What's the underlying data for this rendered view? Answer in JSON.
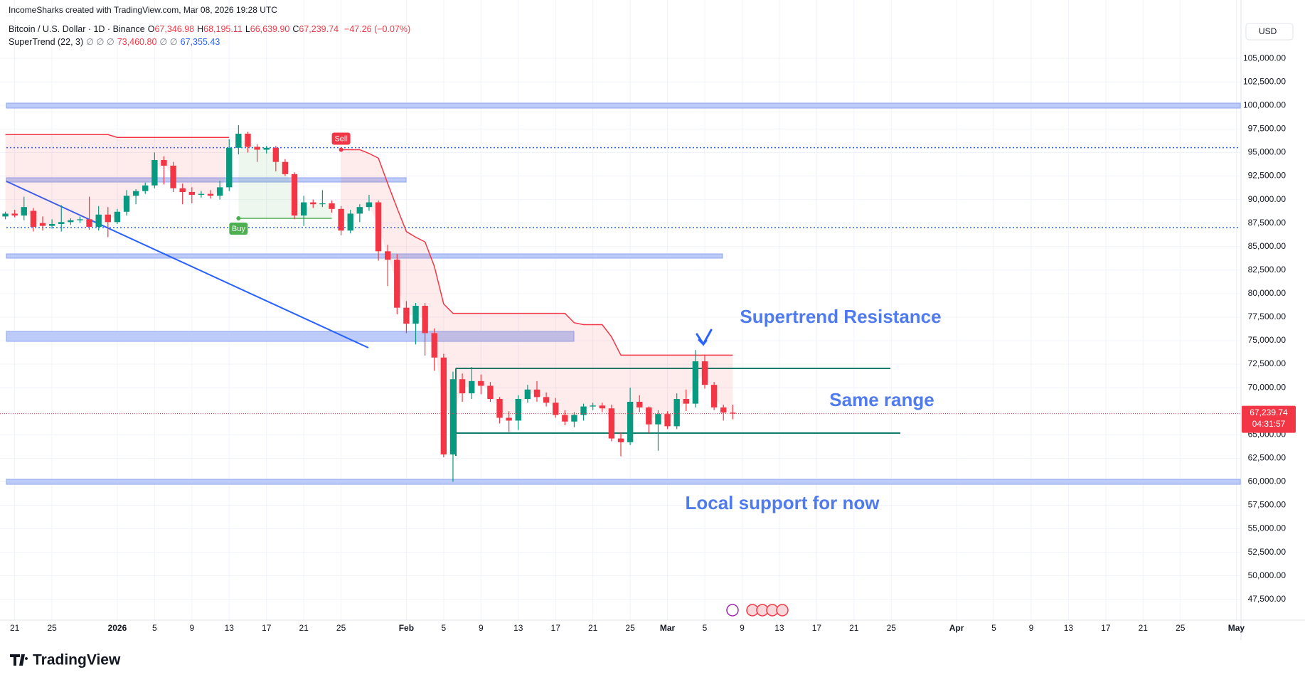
{
  "header": {
    "attribution": "IncomeSharks created with TradingView.com, Mar 08, 2026 19:28 UTC",
    "symbol": "Bitcoin / U.S. Dollar · 1D · Binance",
    "ohlc": [
      {
        "key": "O",
        "value": "67,346.98"
      },
      {
        "key": "H",
        "value": "68,195.11"
      },
      {
        "key": "L",
        "value": "66,639.90"
      },
      {
        "key": "C",
        "value": "67,239.74"
      }
    ],
    "change": "−47.26 (−0.07%)",
    "indicator": "SuperTrend (22, 3)",
    "indicator_values": [
      "∅ ∅ ∅",
      "73,460.80",
      "∅ ∅",
      "67,355.43"
    ],
    "currency": "USD"
  },
  "logo": "TradingView",
  "chart_data": {
    "type": "candlestick",
    "categories": [
      null,
      "21",
      null,
      null,
      null,
      "25",
      null,
      null,
      null,
      null,
      null,
      null,
      "2026",
      null,
      null,
      null,
      "5",
      null,
      null,
      null,
      "9",
      null,
      null,
      null,
      "13",
      null,
      null,
      null,
      "17",
      null,
      null,
      null,
      "21",
      null,
      null,
      null,
      "25",
      null,
      null,
      null,
      null,
      null,
      null,
      "Feb",
      null,
      null,
      null,
      "5",
      null,
      null,
      null,
      "9",
      null,
      null,
      null,
      "13",
      null,
      null,
      null,
      "17",
      null,
      null,
      null,
      "21",
      null,
      null,
      null,
      "25",
      null,
      null,
      null,
      "Mar",
      null,
      null,
      null,
      "5",
      null,
      null,
      null,
      "9",
      null,
      null,
      null,
      "13",
      null,
      null,
      null,
      "17",
      null,
      null,
      null,
      "21",
      null,
      null,
      null,
      "25",
      null,
      null,
      null,
      null,
      null,
      null,
      "Apr",
      null,
      null,
      null,
      "5",
      null,
      null,
      null,
      "9",
      null,
      null,
      null,
      "13",
      null,
      null,
      null,
      "17",
      null,
      null,
      null,
      "21",
      null,
      null,
      null,
      "25",
      null,
      null,
      null,
      null,
      null,
      "May"
    ],
    "open": [
      88200,
      88500,
      88300,
      88800,
      87500,
      87200,
      87400,
      87600,
      87800,
      87900,
      87100,
      88400,
      87600,
      88700,
      90400,
      90900,
      91500,
      94200,
      93600,
      91200,
      90800,
      90500,
      90600,
      90400,
      91300,
      95500,
      97000,
      95600,
      95300,
      95500,
      94000,
      92700,
      88300,
      89700,
      89500,
      89600,
      89000,
      86700,
      88500,
      89200,
      89700,
      84500,
      83600,
      78500,
      76800,
      78700,
      75800,
      73200,
      62900,
      70900,
      69400,
      70700,
      70200,
      68800,
      66800,
      66500,
      68800,
      69800,
      69000,
      68400,
      67100,
      66400,
      67100,
      68000,
      68100,
      67800,
      64600,
      64200,
      68500,
      67900,
      66100,
      67200,
      65900,
      68800,
      68300,
      72800,
      70300,
      67900,
      67346.98,
      null,
      null,
      null,
      null,
      null,
      null,
      null,
      null,
      null,
      null,
      null,
      null,
      null,
      null,
      null,
      null,
      null,
      null,
      null,
      null,
      null,
      null,
      null,
      null,
      null,
      null,
      null,
      null,
      null,
      null,
      null,
      null,
      null,
      null,
      null,
      null,
      null,
      null,
      null,
      null,
      null,
      null,
      null,
      null,
      null,
      null,
      null,
      null,
      null,
      null,
      null,
      null,
      null,
      null
    ],
    "high": [
      88700,
      88900,
      90300,
      89100,
      88200,
      87900,
      89400,
      88000,
      88200,
      90300,
      89300,
      89200,
      89000,
      91000,
      91100,
      91800,
      95000,
      94600,
      94000,
      91700,
      91300,
      90900,
      91000,
      92000,
      96400,
      97900,
      97200,
      95900,
      95700,
      95700,
      94300,
      92900,
      90400,
      90000,
      91000,
      89900,
      89300,
      88900,
      89500,
      90500,
      89900,
      85200,
      84200,
      79200,
      79000,
      79000,
      76300,
      73600,
      71700,
      71500,
      72200,
      71400,
      70600,
      69000,
      67500,
      69200,
      70300,
      70700,
      69500,
      68900,
      67600,
      67400,
      68300,
      68400,
      68400,
      68200,
      65200,
      70000,
      69200,
      68000,
      67600,
      67500,
      69400,
      69800,
      74000,
      73500,
      70600,
      68200,
      68195.11,
      null,
      null,
      null,
      null,
      null,
      null,
      null,
      null,
      null,
      null,
      null,
      null,
      null,
      null,
      null,
      null,
      null,
      null,
      null,
      null,
      null,
      null,
      null,
      null,
      null,
      null,
      null,
      null,
      null,
      null,
      null,
      null,
      null,
      null,
      null,
      null,
      null,
      null,
      null,
      null,
      null,
      null,
      null,
      null,
      null,
      null,
      null,
      null,
      null,
      null,
      null,
      null,
      null,
      null
    ],
    "low": [
      87900,
      88100,
      87800,
      86600,
      86700,
      86900,
      86600,
      87300,
      87500,
      86800,
      86700,
      86000,
      87400,
      88300,
      89500,
      90600,
      91200,
      91600,
      90800,
      89500,
      89600,
      90200,
      90100,
      90000,
      90900,
      94800,
      95000,
      94000,
      94900,
      93000,
      92500,
      87900,
      87200,
      89100,
      89200,
      88600,
      86200,
      86400,
      87600,
      88800,
      83500,
      80800,
      77800,
      75800,
      74600,
      73400,
      71800,
      62600,
      60000,
      68500,
      68800,
      69300,
      68500,
      66200,
      65300,
      65500,
      68400,
      68500,
      68000,
      66800,
      66000,
      65800,
      66500,
      67600,
      67400,
      64300,
      62700,
      63900,
      67400,
      65200,
      63300,
      65600,
      65600,
      67500,
      67900,
      69900,
      67600,
      66500,
      66639.9,
      null,
      null,
      null,
      null,
      null,
      null,
      null,
      null,
      null,
      null,
      null,
      null,
      null,
      null,
      null,
      null,
      null,
      null,
      null,
      null,
      null,
      null,
      null,
      null,
      null,
      null,
      null,
      null,
      null,
      null,
      null,
      null,
      null,
      null,
      null,
      null,
      null,
      null,
      null,
      null,
      null,
      null,
      null,
      null,
      null,
      null,
      null,
      null,
      null,
      null,
      null,
      null,
      null,
      null
    ],
    "close": [
      88500,
      88300,
      89200,
      87100,
      87200,
      87400,
      87600,
      87800,
      87900,
      87100,
      88400,
      87600,
      88700,
      90400,
      90900,
      91500,
      94200,
      93600,
      91200,
      90800,
      90500,
      90600,
      90400,
      91300,
      95500,
      97000,
      95600,
      95300,
      95500,
      94000,
      92700,
      88300,
      89700,
      89500,
      89600,
      89000,
      86700,
      88500,
      89200,
      89700,
      84500,
      83600,
      78500,
      76800,
      78700,
      75800,
      73200,
      62900,
      70900,
      69400,
      70700,
      70200,
      68800,
      66800,
      66500,
      68800,
      69800,
      69000,
      68400,
      67100,
      66400,
      67100,
      68000,
      68100,
      67800,
      64600,
      64200,
      68500,
      67900,
      66100,
      67200,
      65900,
      68800,
      68300,
      72800,
      70300,
      67900,
      67350,
      67239.74,
      null,
      null,
      null,
      null,
      null,
      null,
      null,
      null,
      null,
      null,
      null,
      null,
      null,
      null,
      null,
      null,
      null,
      null,
      null,
      null,
      null,
      null,
      null,
      null,
      null,
      null,
      null,
      null,
      null,
      null,
      null,
      null,
      null,
      null,
      null,
      null,
      null,
      null,
      null,
      null,
      null,
      null,
      null,
      null,
      null,
      null,
      null,
      null,
      null,
      null,
      null,
      null,
      null,
      null
    ],
    "supertrend_down": [
      96900,
      96900,
      96900,
      96900,
      96900,
      96900,
      96900,
      96900,
      96900,
      96900,
      96900,
      96900,
      96600,
      96600,
      96600,
      96600,
      96600,
      96600,
      96600,
      96600,
      96600,
      96600,
      96600,
      96600,
      96600,
      null,
      null,
      null,
      null,
      null,
      null,
      null,
      null,
      null,
      null,
      null,
      95300,
      95300,
      95300,
      94900,
      94400,
      91700,
      89100,
      86600,
      86000,
      85500,
      82900,
      78900,
      77900,
      77900,
      77900,
      77900,
      77900,
      77900,
      77900,
      77900,
      77900,
      77900,
      77900,
      77900,
      77900,
      76900,
      76700,
      76700,
      76700,
      75400,
      73460.8,
      73460.8,
      73460.8,
      73460.8,
      73460.8,
      73460.8,
      73460.8,
      73460.8,
      73460.8,
      73460.8,
      73460.8,
      73460.8,
      73460.8,
      null,
      null,
      null,
      null,
      null,
      null,
      null,
      null,
      null,
      null,
      null,
      null,
      null,
      null,
      null,
      null,
      null,
      null,
      null,
      null,
      null,
      null,
      null,
      null,
      null,
      null,
      null,
      null,
      null,
      null,
      null,
      null,
      null,
      null,
      null,
      null,
      null,
      null,
      null,
      null,
      null,
      null,
      null,
      null,
      null,
      null,
      null,
      null,
      null,
      null,
      null,
      null,
      null,
      null
    ],
    "supertrend_up": [
      null,
      null,
      null,
      null,
      null,
      null,
      null,
      null,
      null,
      null,
      null,
      null,
      null,
      null,
      null,
      null,
      null,
      null,
      null,
      null,
      null,
      null,
      null,
      null,
      null,
      88000,
      88000,
      88000,
      88000,
      88000,
      88000,
      88000,
      88000,
      88000,
      88000,
      88000,
      null,
      null,
      null,
      null,
      null,
      null,
      null,
      null,
      null,
      null,
      null,
      null,
      null,
      null,
      null,
      null,
      null,
      null,
      null,
      null,
      null,
      null,
      null,
      null,
      null,
      null,
      null,
      null,
      null,
      null,
      null,
      null,
      null,
      null,
      null,
      null,
      null,
      null,
      null,
      null,
      null,
      null,
      null,
      null,
      null,
      null,
      null,
      null,
      null,
      null,
      null,
      null,
      null,
      null,
      null,
      null,
      null,
      null,
      null,
      null,
      null,
      null,
      null,
      null,
      null,
      null,
      null,
      null,
      null,
      null,
      null,
      null,
      null,
      null,
      null,
      null,
      null,
      null,
      null,
      null,
      null,
      null,
      null,
      null,
      null,
      null,
      null,
      null,
      null,
      null,
      null,
      null,
      null,
      null,
      null,
      null,
      null
    ],
    "up_color": "#089981",
    "down_color": "#f23645",
    "supertrend_up_color": "#4caf50",
    "supertrend_down_color": "#f23645",
    "ylim": [
      45289,
      109246
    ],
    "yticks": [
      {
        "value": 105000,
        "label": "105,000.00"
      },
      {
        "value": 102500,
        "label": "102,500.00"
      },
      {
        "value": 100000,
        "label": "100,000.00"
      },
      {
        "value": 97500,
        "label": "97,500.00"
      },
      {
        "value": 95000,
        "label": "95,000.00"
      },
      {
        "value": 92500,
        "label": "92,500.00"
      },
      {
        "value": 90000,
        "label": "90,000.00"
      },
      {
        "value": 87500,
        "label": "87,500.00"
      },
      {
        "value": 85000,
        "label": "85,000.00"
      },
      {
        "value": 82500,
        "label": "82,500.00"
      },
      {
        "value": 80000,
        "label": "80,000.00"
      },
      {
        "value": 77500,
        "label": "77,500.00"
      },
      {
        "value": 75000,
        "label": "75,000.00"
      },
      {
        "value": 72500,
        "label": "72,500.00"
      },
      {
        "value": 70000,
        "label": "70,000.00"
      },
      {
        "value": 65000,
        "label": "65,000.00"
      },
      {
        "value": 62500,
        "label": "62,500.00"
      },
      {
        "value": 60000,
        "label": "60,000.00"
      },
      {
        "value": 57500,
        "label": "57,500.00"
      },
      {
        "value": 55000,
        "label": "55,000.00"
      },
      {
        "value": 52500,
        "label": "52,500.00"
      },
      {
        "value": 50000,
        "label": "50,000.00"
      },
      {
        "value": 47500,
        "label": "47,500.00"
      }
    ],
    "grid": true,
    "last_price": {
      "value": 67239.74,
      "label": "67,239.74"
    },
    "countdown": "04:31:57",
    "signals": {
      "buy": "Buy",
      "sell": "Sell"
    },
    "annotations": [
      "Supertrend Resistance",
      "Same range",
      "Local support for now"
    ]
  }
}
